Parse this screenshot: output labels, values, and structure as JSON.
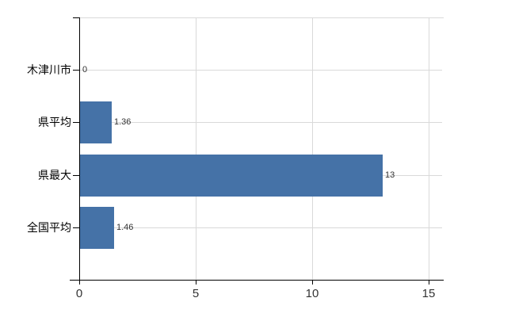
{
  "chart_data": {
    "type": "bar",
    "orientation": "horizontal",
    "title": "",
    "xlabel": "",
    "ylabel": "",
    "categories": [
      "木津川市",
      "県平均",
      "県最大",
      "全国平均"
    ],
    "values": [
      0,
      1.36,
      13,
      1.46
    ],
    "value_labels": [
      "0",
      "1.36",
      "13",
      "1.46"
    ],
    "xticks": [
      0,
      5,
      10,
      15
    ],
    "xtick_labels": [
      "0",
      "5",
      "10",
      "15"
    ],
    "xlim": [
      0,
      15.6
    ],
    "grid": true,
    "legend": false,
    "bar_color": "#4572a7",
    "grid_color": "#d9d9d9",
    "axis_color": "#000000",
    "value_label_color": "#333333",
    "tick_label_color": "#333333",
    "category_label_color": "#000000"
  }
}
